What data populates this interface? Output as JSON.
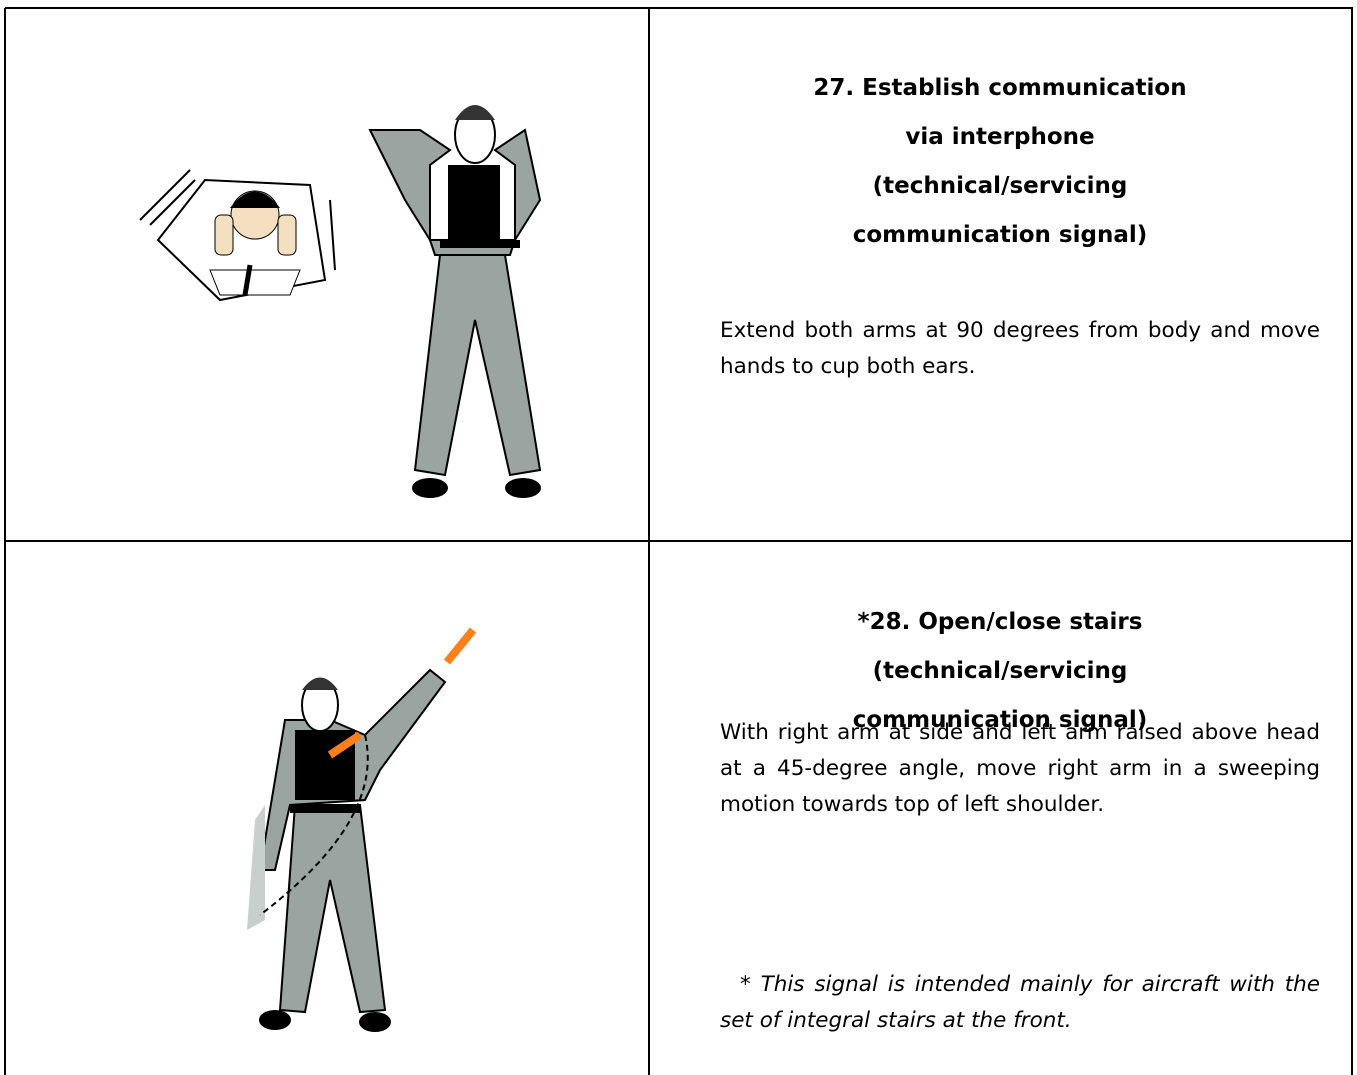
{
  "table": {
    "rows": [
      {
        "title": [
          "27. Establish communication",
          "via interphone",
          "(technical/servicing",
          "communication signal)"
        ],
        "description": "Extend both arms at 90 degrees from body and move hands to cup both ears."
      },
      {
        "title": [
          "*28. Open/close stairs",
          "(technical/servicing",
          "communication signal)"
        ],
        "description": "With right arm at side and left arm raised above head at a 45-degree angle, move right arm in a sweeping motion towards top of left shoulder.",
        "note": "* This signal is intended mainly for aircraft with the set of integral stairs at the front."
      }
    ]
  }
}
